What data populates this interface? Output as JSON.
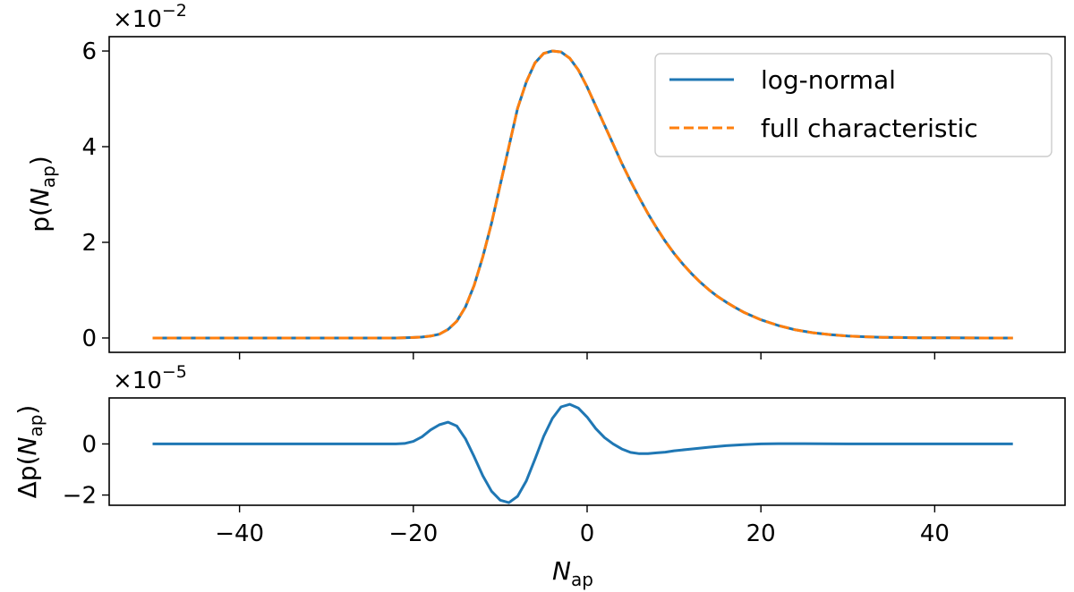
{
  "chart_data": [
    {
      "type": "line",
      "ylabel_main": "p(",
      "ylabel_var": "N",
      "ylabel_sub": "ap",
      "ylabel_close": ")",
      "multiplier_base": "×10",
      "multiplier_exp": "−2",
      "xlim": [
        -55,
        55
      ],
      "ylim": [
        -0.3,
        6.3
      ],
      "yticks": [
        0,
        2,
        4,
        6
      ],
      "ytick_labels": [
        "0",
        "2",
        "4",
        "6"
      ],
      "xticks": [
        -40,
        -20,
        0,
        20,
        40
      ],
      "legend": {
        "placement": "top-right",
        "entries": [
          "log-normal",
          "full characteristic"
        ]
      },
      "series": [
        {
          "name": "log-normal",
          "color": "#1f77b4",
          "style": "solid",
          "x": [
            -50,
            -48,
            -46,
            -44,
            -42,
            -40,
            -38,
            -36,
            -34,
            -32,
            -30,
            -28,
            -26,
            -24,
            -22,
            -20,
            -19,
            -18,
            -17,
            -16,
            -15,
            -14,
            -13,
            -12,
            -11,
            -10,
            -9,
            -8,
            -7,
            -6,
            -5,
            -4,
            -3,
            -2,
            -1,
            0,
            1,
            2,
            3,
            4,
            5,
            6,
            7,
            8,
            9,
            10,
            11,
            12,
            13,
            14,
            15,
            16,
            17,
            18,
            20,
            22,
            24,
            26,
            28,
            30,
            32,
            34,
            36,
            38,
            40,
            42,
            44,
            46,
            48,
            49
          ],
          "y": [
            0,
            0,
            0,
            0,
            0,
            0,
            0,
            0,
            0,
            0,
            0,
            0,
            0,
            0,
            0,
            0.01,
            0.02,
            0.04,
            0.08,
            0.18,
            0.35,
            0.65,
            1.1,
            1.7,
            2.4,
            3.2,
            4.0,
            4.8,
            5.35,
            5.75,
            5.95,
            6.0,
            5.98,
            5.85,
            5.6,
            5.25,
            4.85,
            4.45,
            4.05,
            3.65,
            3.28,
            2.93,
            2.6,
            2.3,
            2.02,
            1.77,
            1.55,
            1.35,
            1.17,
            1.01,
            0.87,
            0.75,
            0.64,
            0.54,
            0.38,
            0.26,
            0.17,
            0.11,
            0.07,
            0.04,
            0.025,
            0.015,
            0.01,
            0.005,
            0.003,
            0.002,
            0.001,
            0,
            0,
            0
          ]
        },
        {
          "name": "full characteristic",
          "color": "#ff7f0e",
          "style": "dashed",
          "x": [
            -50,
            -48,
            -46,
            -44,
            -42,
            -40,
            -38,
            -36,
            -34,
            -32,
            -30,
            -28,
            -26,
            -24,
            -22,
            -20,
            -19,
            -18,
            -17,
            -16,
            -15,
            -14,
            -13,
            -12,
            -11,
            -10,
            -9,
            -8,
            -7,
            -6,
            -5,
            -4,
            -3,
            -2,
            -1,
            0,
            1,
            2,
            3,
            4,
            5,
            6,
            7,
            8,
            9,
            10,
            11,
            12,
            13,
            14,
            15,
            16,
            17,
            18,
            20,
            22,
            24,
            26,
            28,
            30,
            32,
            34,
            36,
            38,
            40,
            42,
            44,
            46,
            48,
            49
          ],
          "y": [
            0,
            0,
            0,
            0,
            0,
            0,
            0,
            0,
            0,
            0,
            0,
            0,
            0,
            0,
            0,
            0.01,
            0.02,
            0.04,
            0.08,
            0.18,
            0.35,
            0.65,
            1.1,
            1.7,
            2.4,
            3.2,
            4.0,
            4.8,
            5.35,
            5.75,
            5.95,
            6.0,
            5.98,
            5.85,
            5.6,
            5.25,
            4.85,
            4.45,
            4.05,
            3.65,
            3.28,
            2.93,
            2.6,
            2.3,
            2.02,
            1.77,
            1.55,
            1.35,
            1.17,
            1.01,
            0.87,
            0.75,
            0.64,
            0.54,
            0.38,
            0.26,
            0.17,
            0.11,
            0.07,
            0.04,
            0.025,
            0.015,
            0.01,
            0.005,
            0.003,
            0.002,
            0.001,
            0,
            0,
            0
          ]
        }
      ]
    },
    {
      "type": "line",
      "ylabel_main": "Δp(",
      "ylabel_var": "N",
      "ylabel_sub": "ap",
      "ylabel_close": ")",
      "multiplier_base": "×10",
      "multiplier_exp": "−5",
      "xlabel_var": "N",
      "xlabel_sub": "ap",
      "xlim": [
        -55,
        55
      ],
      "ylim": [
        -2.4,
        1.8
      ],
      "yticks": [
        -2,
        0
      ],
      "ytick_labels": [
        "−2",
        "0"
      ],
      "xticks": [
        -40,
        -20,
        0,
        20,
        40
      ],
      "xtick_labels": [
        "−40",
        "−20",
        "0",
        "20",
        "40"
      ],
      "series": [
        {
          "color": "#1f77b4",
          "style": "solid",
          "x": [
            -50,
            -40,
            -30,
            -25,
            -22,
            -21,
            -20,
            -19,
            -18,
            -17,
            -16,
            -15,
            -14,
            -13,
            -12,
            -11,
            -10,
            -9,
            -8,
            -7,
            -6,
            -5,
            -4,
            -3,
            -2,
            -1,
            0,
            1,
            2,
            3,
            4,
            5,
            6,
            7,
            8,
            9,
            10,
            12,
            14,
            16,
            18,
            20,
            22,
            25,
            30,
            35,
            40,
            45,
            49
          ],
          "y": [
            0,
            0,
            0,
            0,
            0,
            0.02,
            0.1,
            0.28,
            0.55,
            0.75,
            0.85,
            0.7,
            0.2,
            -0.5,
            -1.25,
            -1.85,
            -2.2,
            -2.3,
            -2.05,
            -1.45,
            -0.6,
            0.3,
            1.0,
            1.45,
            1.55,
            1.4,
            1.05,
            0.6,
            0.25,
            0,
            -0.2,
            -0.33,
            -0.38,
            -0.38,
            -0.35,
            -0.32,
            -0.27,
            -0.2,
            -0.13,
            -0.07,
            -0.03,
            0,
            0.01,
            0.01,
            0,
            0,
            0,
            0,
            0
          ]
        }
      ]
    }
  ]
}
